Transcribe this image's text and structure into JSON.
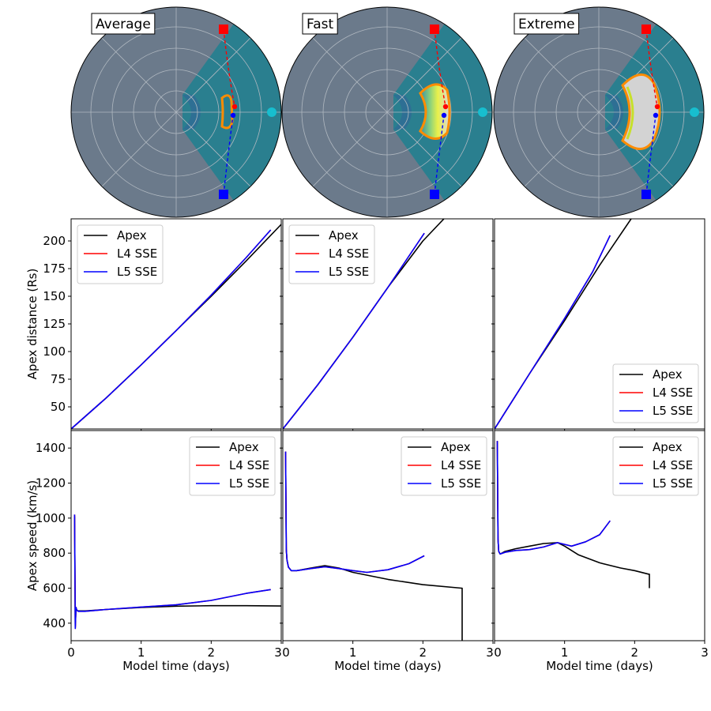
{
  "chart_data": [
    {
      "type": "polar",
      "panel": "Average",
      "title": "Average",
      "markers": {
        "earth_color": "#17becf",
        "l4_color": "#ff0000",
        "l5_color": "#0000ff"
      },
      "cme_front": {
        "color": "#ff8c00"
      }
    },
    {
      "type": "polar",
      "panel": "Fast",
      "title": "Fast",
      "markers": {
        "earth_color": "#17becf",
        "l4_color": "#ff0000",
        "l5_color": "#0000ff"
      },
      "cme_front": {
        "color": "#ff8c00"
      }
    },
    {
      "type": "polar",
      "panel": "Extreme",
      "title": "Extreme",
      "markers": {
        "earth_color": "#17becf",
        "l4_color": "#ff0000",
        "l5_color": "#0000ff"
      },
      "cme_front": {
        "color": "#ff8c00"
      }
    },
    {
      "type": "line",
      "panel": "Average",
      "ylabel": "Apex distance (Rs)",
      "ylim": [
        30,
        220
      ],
      "xlim": [
        0,
        3.0
      ],
      "yticks": [
        50,
        75,
        100,
        125,
        150,
        175,
        200
      ],
      "legend": "upper-left",
      "series": [
        {
          "name": "Apex",
          "color": "#000000",
          "x": [
            0.0,
            0.5,
            1.0,
            1.5,
            2.0,
            2.5,
            3.0
          ],
          "y": [
            30,
            58,
            88,
            119,
            150,
            182,
            215
          ]
        },
        {
          "name": "L4 SSE",
          "color": "#ff0000",
          "x": [
            0.0,
            0.5,
            1.0,
            1.5,
            2.0,
            2.5,
            2.85
          ],
          "y": [
            30,
            58,
            88,
            119,
            151,
            185,
            210
          ]
        },
        {
          "name": "L5 SSE",
          "color": "#0000ff",
          "x": [
            0.0,
            0.5,
            1.0,
            1.5,
            2.0,
            2.5,
            2.85
          ],
          "y": [
            30,
            58,
            88,
            119,
            151,
            185,
            210
          ]
        }
      ]
    },
    {
      "type": "line",
      "panel": "Fast",
      "ylim": [
        30,
        220
      ],
      "xlim": [
        0,
        3.0
      ],
      "legend": "upper-left",
      "series": [
        {
          "name": "Apex",
          "color": "#000000",
          "x": [
            0.0,
            0.5,
            1.0,
            1.5,
            2.0,
            2.3
          ],
          "y": [
            30,
            70,
            113,
            158,
            200,
            220
          ]
        },
        {
          "name": "L4 SSE",
          "color": "#ff0000",
          "x": [
            0.0,
            0.5,
            1.0,
            1.5,
            2.02
          ],
          "y": [
            30,
            70,
            113,
            158,
            207
          ]
        },
        {
          "name": "L5 SSE",
          "color": "#0000ff",
          "x": [
            0.0,
            0.5,
            1.0,
            1.5,
            2.02
          ],
          "y": [
            30,
            70,
            113,
            158,
            207
          ]
        }
      ]
    },
    {
      "type": "line",
      "panel": "Extreme",
      "ylim": [
        30,
        220
      ],
      "xlim": [
        0,
        3.0
      ],
      "legend": "lower-right",
      "series": [
        {
          "name": "Apex",
          "color": "#000000",
          "x": [
            0.0,
            0.5,
            1.0,
            1.5,
            1.95
          ],
          "y": [
            30,
            80,
            128,
            178,
            220
          ]
        },
        {
          "name": "L4 SSE",
          "color": "#ff0000",
          "x": [
            0.0,
            0.5,
            1.0,
            1.4,
            1.65
          ],
          "y": [
            30,
            80,
            130,
            172,
            205
          ]
        },
        {
          "name": "L5 SSE",
          "color": "#0000ff",
          "x": [
            0.0,
            0.5,
            1.0,
            1.4,
            1.65
          ],
          "y": [
            30,
            80,
            130,
            172,
            205
          ]
        }
      ]
    },
    {
      "type": "line",
      "panel": "Average",
      "ylabel": "Apex speed (km/s)",
      "xlabel": "Model time (days)",
      "ylim": [
        300,
        1500
      ],
      "xlim": [
        0,
        3.0
      ],
      "yticks": [
        400,
        600,
        800,
        1000,
        1200,
        1400
      ],
      "xticks": [
        "0",
        "1",
        "2",
        "3"
      ],
      "legend": "upper-right",
      "series": [
        {
          "name": "Apex",
          "color": "#000000",
          "x": [
            0.05,
            0.06,
            0.07,
            0.08,
            0.1,
            0.2,
            0.5,
            1.0,
            1.5,
            2.0,
            2.5,
            3.0
          ],
          "y": [
            1010,
            380,
            490,
            475,
            470,
            470,
            478,
            490,
            497,
            500,
            500,
            498
          ]
        },
        {
          "name": "L4 SSE",
          "color": "#ff0000",
          "x": [
            0.05,
            0.06,
            0.07,
            0.08,
            0.1,
            0.2,
            0.5,
            1.0,
            1.5,
            2.0,
            2.5,
            2.85
          ],
          "y": [
            1020,
            370,
            490,
            475,
            468,
            468,
            478,
            492,
            505,
            530,
            570,
            592
          ]
        },
        {
          "name": "L5 SSE",
          "color": "#0000ff",
          "x": [
            0.05,
            0.06,
            0.07,
            0.08,
            0.1,
            0.2,
            0.5,
            1.0,
            1.5,
            2.0,
            2.5,
            2.85
          ],
          "y": [
            1020,
            370,
            490,
            475,
            468,
            468,
            478,
            492,
            505,
            530,
            570,
            592
          ]
        }
      ]
    },
    {
      "type": "line",
      "panel": "Fast",
      "xlabel": "Model time (days)",
      "ylim": [
        300,
        1500
      ],
      "xlim": [
        0,
        3.0
      ],
      "xticks": [
        "0",
        "1",
        "2",
        "3"
      ],
      "legend": "upper-right",
      "series": [
        {
          "name": "Apex",
          "color": "#000000",
          "x": [
            0.04,
            0.05,
            0.06,
            0.08,
            0.12,
            0.2,
            0.4,
            0.6,
            0.8,
            1.0,
            1.5,
            2.0,
            2.55,
            2.56,
            2.56
          ],
          "y": [
            1380,
            820,
            760,
            720,
            700,
            700,
            715,
            728,
            715,
            690,
            650,
            620,
            600,
            600,
            300
          ]
        },
        {
          "name": "L4 SSE",
          "color": "#ff0000",
          "x": [
            0.04,
            0.05,
            0.06,
            0.08,
            0.12,
            0.2,
            0.4,
            0.6,
            0.8,
            1.0,
            1.2,
            1.5,
            1.8,
            2.02
          ],
          "y": [
            1380,
            820,
            760,
            720,
            700,
            700,
            712,
            722,
            712,
            700,
            690,
            705,
            740,
            785
          ]
        },
        {
          "name": "L5 SSE",
          "color": "#0000ff",
          "x": [
            0.04,
            0.05,
            0.06,
            0.08,
            0.12,
            0.2,
            0.4,
            0.6,
            0.8,
            1.0,
            1.2,
            1.5,
            1.8,
            2.02
          ],
          "y": [
            1380,
            820,
            760,
            720,
            700,
            700,
            712,
            722,
            712,
            700,
            690,
            705,
            740,
            785
          ]
        }
      ]
    },
    {
      "type": "line",
      "panel": "Extreme",
      "xlabel": "Model time (days)",
      "ylim": [
        300,
        1500
      ],
      "xlim": [
        0,
        3.0
      ],
      "xticks": [
        "0",
        "1",
        "2",
        "3"
      ],
      "legend": "upper-right",
      "series": [
        {
          "name": "Apex",
          "color": "#000000",
          "x": [
            0.04,
            0.05,
            0.06,
            0.08,
            0.15,
            0.3,
            0.5,
            0.7,
            0.9,
            1.0,
            1.2,
            1.5,
            1.8,
            2.0,
            2.2,
            2.21,
            2.21
          ],
          "y": [
            1440,
            880,
            810,
            795,
            810,
            825,
            840,
            855,
            860,
            840,
            790,
            745,
            715,
            700,
            680,
            680,
            600
          ]
        },
        {
          "name": "L4 SSE",
          "color": "#ff0000",
          "x": [
            0.04,
            0.05,
            0.06,
            0.08,
            0.15,
            0.3,
            0.5,
            0.7,
            0.9,
            1.0,
            1.1,
            1.3,
            1.5,
            1.65
          ],
          "y": [
            1440,
            880,
            810,
            795,
            805,
            815,
            820,
            835,
            860,
            850,
            840,
            865,
            905,
            985
          ]
        },
        {
          "name": "L5 SSE",
          "color": "#0000ff",
          "x": [
            0.04,
            0.05,
            0.06,
            0.08,
            0.15,
            0.3,
            0.5,
            0.7,
            0.9,
            1.0,
            1.1,
            1.3,
            1.5,
            1.65
          ],
          "y": [
            1440,
            880,
            810,
            795,
            805,
            815,
            820,
            835,
            860,
            850,
            840,
            865,
            905,
            985
          ]
        }
      ]
    }
  ]
}
